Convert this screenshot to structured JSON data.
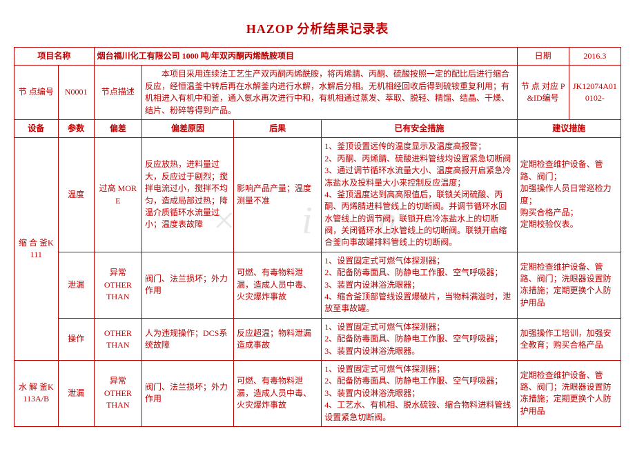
{
  "title": "HAZOP 分析结果记录表",
  "watermark": "× i n",
  "header": {
    "project_name_label": "项目名称",
    "project_name": "烟台福川化工有限公司 1000 吨/年双丙酮丙烯酰胺项目",
    "date_label": "日期",
    "date_value": "2016.3",
    "node_no_label": "节 点编号",
    "node_no": "N0001",
    "node_desc_label": "节点描述",
    "node_desc": "本项目采用连续法工艺生产双丙酮丙烯酰胺，将丙烯腈、丙酮、硫酸按照一定的配比后进行缩合反应，经恒温釜中转后再在水解釜内进行水解，水解后分相。无机相经回收后得到硫铵重复利用；有机相进入有机中和釜，通入氨水再次进行中和，有机相通过蒸发、萃取、脱轻、精馏、结晶、干燥、结片、粉碎等得到产品。",
    "pid_label": "节 点 对应 P&ID编号",
    "pid_value": "JK12074A010102-"
  },
  "columns": {
    "equip": "设备",
    "param": "参数",
    "deviation": "偏差",
    "cause": "偏差原因",
    "consequence": "后果",
    "safeguard": "已有安全措施",
    "recommend": "建议措施"
  },
  "rows": [
    {
      "equip": "缩 合 釜K111",
      "param": "温度",
      "deviation": "过高 MORE",
      "cause": "反应放热，进料量过大，反应过于剧烈；搅拌电流过小，搅拌不均匀，造成局部过热；降温介质循环水流量过小；温度表故障",
      "consequence": "影响产品产量；温度测量不准",
      "safeguard": "1、釜顶设置远传的温度显示及温度高报警；\n2、丙酮、丙烯腈、硫酸进料管线均设置紧急切断阀\n3、通过调节循环水流量大小、温度高报开启紧急冷冻盐水及投料量大小来控制反应温度；\n4、釜顶温度达到高高限值后，联锁关闭硫酸、丙酮、丙烯腈进料管线上的切断阀。并调节循环水回水管线上的调节阀，联锁开启冷冻盐水上的切断阀，关闭循环水上水管线上的切断阀。联锁开启缩合釜向事故罐排料管线上的切断阀。",
      "recommend": "定期检查维护设备、管路、阀门；\n加强操作人员日常巡检力度；\n购买合格产品；\n定期校验仪表。"
    },
    {
      "equip": "",
      "param": "泄漏",
      "deviation": "异常\nOTHER\nTHAN",
      "cause": "阀门、法兰损坏；外力作用",
      "consequence": "可燃、有毒物料泄漏，造成人员中毒、火灾爆炸事故",
      "safeguard": "1、设置固定式可燃气体探测器；\n2、配备防毒面具、防静电工作服、空气呼吸器；\n3、装置内设淋浴洗眼器；\n4、缩合釜顶部管线设置爆破片，当物料满溢时，泄放至事故罐。",
      "recommend": "定期检查维护设备、管路、阀门；洗眼器设置防冻措施；定期更换个人防护用品"
    },
    {
      "equip": "",
      "param": "操作",
      "deviation": "OTHER\nTHAN",
      "cause": "人为违规操作；DCS系统故障",
      "consequence": "反应超温；物料泄漏造成事故",
      "safeguard": "1、设置固定式可燃气体探测器；\n2、配备防毒面具、防静电工作服、空气呼吸器；\n3、装置内设淋浴洗眼器。",
      "recommend": "加强操作工培训，加强安全教育；购买合格产品"
    },
    {
      "equip": "水 解 釜K113A/B",
      "param": "泄漏",
      "deviation": "异常\nOTHER\nTHAN",
      "cause": "阀门、法兰损坏；外力作用",
      "consequence": "可燃、有毒物料泄漏，造成人员中毒、火灾爆炸事故",
      "safeguard": "1、设置固定式可燃气体探测器；\n2、配备防毒面具、防静电工作服、空气呼吸器；\n3、装置内设淋浴洗眼器；\n4、工艺水、有机相、脱水硫铵、缩合物料进料管线设置紧急切断阀。",
      "recommend": "定期检查维护设备、管路、阀门；洗眼器设置防冻措施；定期更换个人防护用品"
    }
  ],
  "style": {
    "text_color": "#bf0000",
    "border_color": "#bf0000",
    "background": "#ffffff",
    "title_fontsize": 18,
    "body_fontsize": 12
  }
}
